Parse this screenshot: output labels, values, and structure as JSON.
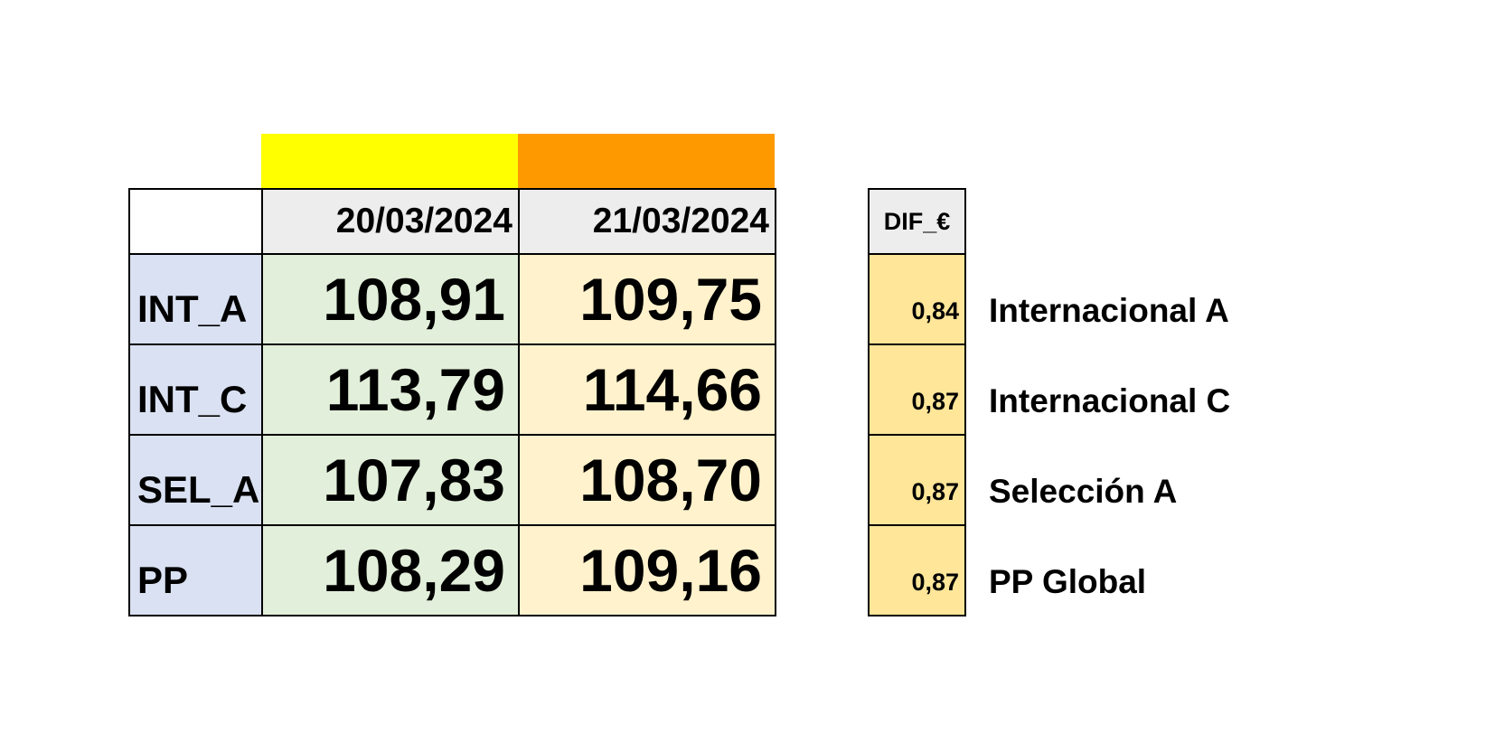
{
  "colors": {
    "bar_1": "#ffff00",
    "bar_2": "#ff9900",
    "date_header_bg": "#ededed",
    "code_bg": "#d9e1f2",
    "col1_bg": "#e2efda",
    "col2_bg": "#fff2cc",
    "diff_bg": "#ffe699",
    "diff_header_bg": "#ededed"
  },
  "chart_data": {
    "type": "table",
    "columns": [
      "20/03/2024",
      "21/03/2024"
    ],
    "rows": [
      {
        "code": "INT_A",
        "values": [
          "108,91",
          "109,75"
        ],
        "dif": "0,84",
        "name": "Internacional A"
      },
      {
        "code": "INT_C",
        "values": [
          "113,79",
          "114,66"
        ],
        "dif": "0,87",
        "name": "Internacional C"
      },
      {
        "code": "SEL_A",
        "values": [
          "107,83",
          "108,70"
        ],
        "dif": "0,87",
        "name": "Selección A"
      },
      {
        "code": "PP",
        "values": [
          "108,29",
          "109,16"
        ],
        "dif": "0,87",
        "name": "PP Global"
      }
    ],
    "diff_header": "DIF_€"
  }
}
